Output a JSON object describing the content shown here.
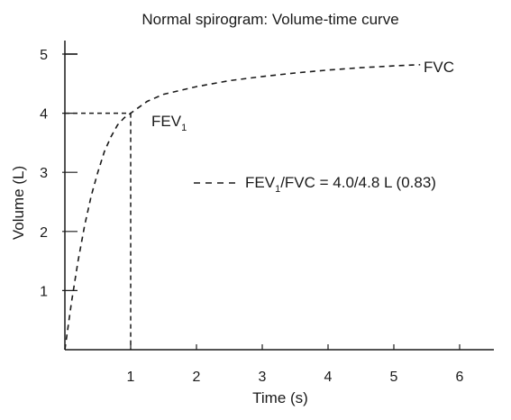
{
  "chart_data": {
    "type": "line",
    "title": "Normal spirogram: Volume-time curve",
    "xlabel": "Time (s)",
    "ylabel": "Volume (L)",
    "xlim": [
      0,
      6.5
    ],
    "ylim": [
      0,
      5
    ],
    "x_ticks": [
      1,
      2,
      3,
      4,
      5,
      6
    ],
    "y_ticks": [
      1,
      2,
      3,
      4,
      5
    ],
    "grid": false,
    "series": [
      {
        "style": "dashed",
        "color": "#1a1a1a",
        "x": [
          0,
          0.1,
          0.2,
          0.3,
          0.4,
          0.5,
          0.6,
          0.7,
          0.8,
          0.9,
          1.0,
          1.25,
          1.5,
          2.0,
          2.5,
          3.0,
          3.5,
          4.0,
          4.5,
          5.0,
          5.4
        ],
        "y": [
          0,
          0.8,
          1.5,
          2.1,
          2.6,
          3.0,
          3.35,
          3.6,
          3.8,
          3.92,
          4.0,
          4.2,
          4.32,
          4.45,
          4.55,
          4.62,
          4.68,
          4.73,
          4.77,
          4.8,
          4.82
        ]
      }
    ],
    "reference_lines": {
      "fev1_time": 1,
      "fev1_volume": 4.0,
      "style": "dashed"
    },
    "annotations": {
      "fvc_label": "FVC",
      "fev1_label": "FEV",
      "fev1_subscript": "1",
      "ratio_label_part1": "FEV",
      "ratio_label_subscript": "1",
      "ratio_label_part2": "/FVC = 4.0/4.8 L (0.83)"
    }
  }
}
